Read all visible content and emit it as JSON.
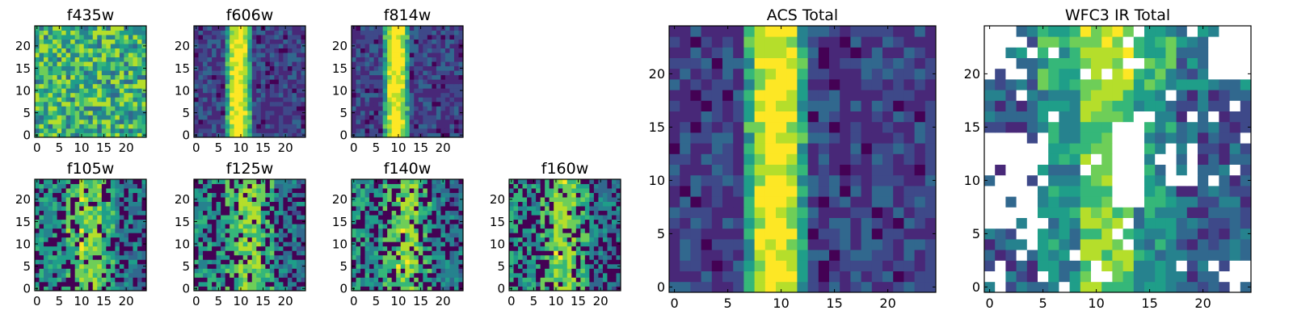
{
  "chart_data": [
    {
      "type": "heatmap",
      "title": "f435w",
      "colormap": "viridis",
      "pattern": "noise",
      "xticks": [
        "0",
        "5",
        "10",
        "15",
        "20"
      ],
      "yticks": [
        "0",
        "5",
        "10",
        "15",
        "20"
      ],
      "xlim": [
        0,
        25
      ],
      "ylim": [
        0,
        25
      ]
    },
    {
      "type": "heatmap",
      "title": "f606w",
      "colormap": "viridis",
      "pattern": "stripe",
      "xticks": [
        "0",
        "5",
        "10",
        "15",
        "20"
      ],
      "yticks": [
        "0",
        "5",
        "10",
        "15",
        "20"
      ],
      "xlim": [
        0,
        25
      ],
      "ylim": [
        0,
        25
      ]
    },
    {
      "type": "heatmap",
      "title": "f814w",
      "colormap": "viridis",
      "pattern": "stripe",
      "xticks": [
        "0",
        "5",
        "10",
        "15",
        "20"
      ],
      "yticks": [
        "0",
        "5",
        "10",
        "15",
        "20"
      ],
      "xlim": [
        0,
        25
      ],
      "ylim": [
        0,
        25
      ]
    },
    {
      "type": "heatmap",
      "title": "f105w",
      "colormap": "viridis",
      "pattern": "ir-masked",
      "xticks": [
        "0",
        "5",
        "10",
        "15",
        "20"
      ],
      "yticks": [
        "0",
        "5",
        "10",
        "15",
        "20"
      ],
      "xlim": [
        0,
        25
      ],
      "ylim": [
        0,
        25
      ]
    },
    {
      "type": "heatmap",
      "title": "f125w",
      "colormap": "viridis",
      "pattern": "ir-masked",
      "xticks": [
        "0",
        "5",
        "10",
        "15",
        "20"
      ],
      "yticks": [
        "0",
        "5",
        "10",
        "15",
        "20"
      ],
      "xlim": [
        0,
        25
      ],
      "ylim": [
        0,
        25
      ]
    },
    {
      "type": "heatmap",
      "title": "f140w",
      "colormap": "viridis",
      "pattern": "ir-masked",
      "xticks": [
        "0",
        "5",
        "10",
        "15",
        "20"
      ],
      "yticks": [
        "0",
        "5",
        "10",
        "15",
        "20"
      ],
      "xlim": [
        0,
        25
      ],
      "ylim": [
        0,
        25
      ]
    },
    {
      "type": "heatmap",
      "title": "f160w",
      "colormap": "viridis",
      "pattern": "ir-masked",
      "xticks": [
        "0",
        "5",
        "10",
        "15",
        "20"
      ],
      "yticks": [
        "0",
        "5",
        "10",
        "15",
        "20"
      ],
      "xlim": [
        0,
        25
      ],
      "ylim": [
        0,
        25
      ]
    },
    {
      "type": "heatmap",
      "title": "ACS Total",
      "colormap": "viridis",
      "pattern": "stripe",
      "xticks": [
        "0",
        "5",
        "10",
        "15",
        "20"
      ],
      "yticks": [
        "0",
        "5",
        "10",
        "15",
        "20"
      ],
      "xlim": [
        0,
        25
      ],
      "ylim": [
        0,
        25
      ]
    },
    {
      "type": "heatmap",
      "title": "WFC3 IR Total",
      "colormap": "viridis",
      "pattern": "ir-total",
      "xticks": [
        "0",
        "5",
        "10",
        "15",
        "20"
      ],
      "yticks": [
        "0",
        "5",
        "10",
        "15",
        "20"
      ],
      "xlim": [
        0,
        25
      ],
      "ylim": [
        0,
        25
      ]
    }
  ],
  "colors": {
    "viridis": [
      "#440154",
      "#482878",
      "#3e4989",
      "#31688e",
      "#26828e",
      "#1f9e89",
      "#35b779",
      "#6ece58",
      "#b5de2b",
      "#fde725"
    ],
    "masked": "#ffffff",
    "frame": "#000000"
  }
}
